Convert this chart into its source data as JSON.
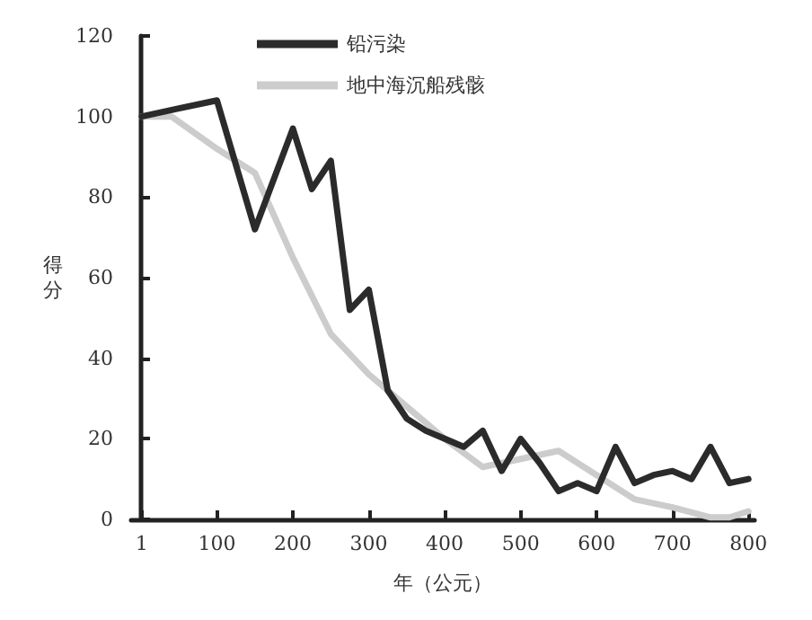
{
  "chart_data": {
    "type": "line",
    "xlabel": "年（公元）",
    "ylabel": "得分",
    "xlim": [
      -13,
      808
    ],
    "xticks": [
      1,
      100,
      200,
      300,
      400,
      500,
      600,
      700,
      800
    ],
    "ylim": [
      0,
      120
    ],
    "yticks": [
      0,
      20,
      40,
      60,
      80,
      100,
      120
    ],
    "grid": false,
    "legend": "top left",
    "marker": "none",
    "line_style": "solid",
    "series": [
      {
        "name": "铅污染",
        "color": "#2b2b2b",
        "x": [
          1,
          50,
          100,
          150,
          200,
          225,
          250,
          275,
          300,
          325,
          350,
          375,
          400,
          425,
          450,
          475,
          500,
          525,
          550,
          575,
          600,
          625,
          650,
          675,
          700,
          725,
          750,
          775,
          800
        ],
        "values": [
          100,
          102,
          104,
          72,
          97,
          82,
          89,
          52,
          57,
          32,
          25,
          22,
          20,
          18,
          22,
          12,
          20,
          14,
          7,
          9,
          7,
          18,
          9,
          11,
          12,
          10,
          18,
          9,
          10
        ]
      },
      {
        "name": "地中海沉船残骸",
        "color": "#cccccc",
        "x": [
          1,
          40,
          100,
          150,
          200,
          250,
          275,
          300,
          350,
          400,
          450,
          500,
          550,
          600,
          650,
          700,
          750,
          775,
          800
        ],
        "values": [
          100,
          100,
          92,
          86,
          65,
          46,
          41,
          36,
          28,
          20,
          13,
          15,
          17,
          11,
          5,
          3,
          0.5,
          0.5,
          2
        ]
      }
    ]
  }
}
